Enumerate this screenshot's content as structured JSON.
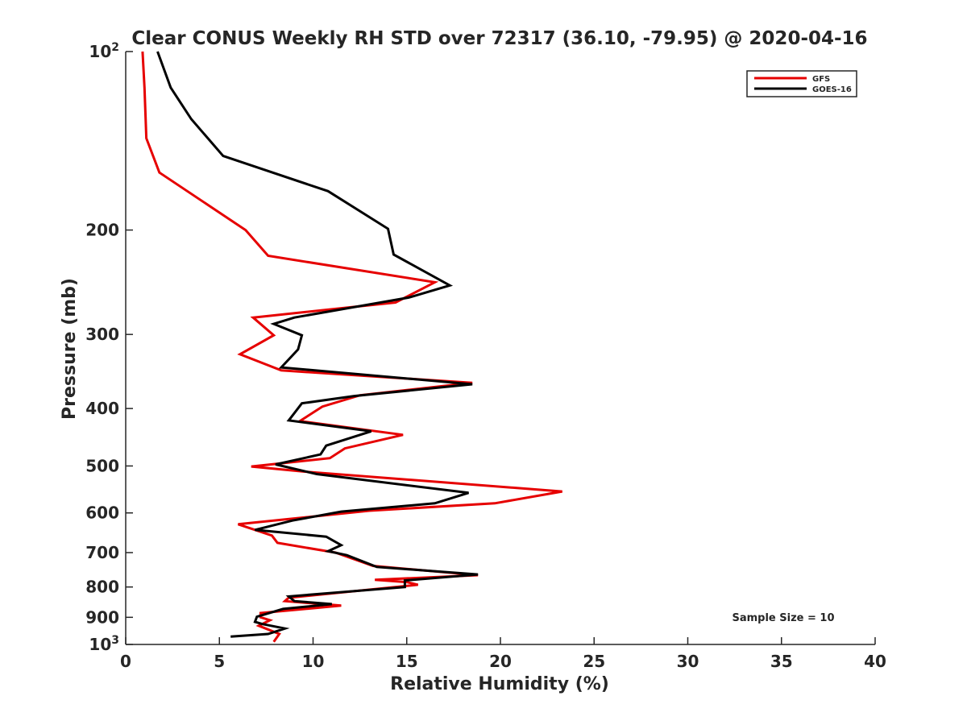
{
  "chart_data": {
    "type": "line",
    "title": "Clear CONUS Weekly RH STD over 72317 (36.10, -79.95) @ 2020-04-16",
    "xlabel": "Relative Humidity (%)",
    "ylabel": "Pressure (mb)",
    "xlim": [
      0,
      40
    ],
    "ylim": [
      100,
      1000
    ],
    "y_scale": "log",
    "y_reversed": true,
    "grid": false,
    "legend_position": "top-right",
    "x_ticks": [
      0,
      5,
      10,
      15,
      20,
      25,
      30,
      35,
      40
    ],
    "x_tick_labels": [
      "0",
      "5",
      "10",
      "15",
      "20",
      "25",
      "30",
      "35",
      "40"
    ],
    "y_ticks": [
      100,
      200,
      300,
      400,
      500,
      600,
      700,
      800,
      900,
      1000
    ],
    "y_tick_labels": [
      {
        "base": "10",
        "exp": "2"
      },
      {
        "base": "200",
        "exp": ""
      },
      {
        "base": "300",
        "exp": ""
      },
      {
        "base": "400",
        "exp": ""
      },
      {
        "base": "500",
        "exp": ""
      },
      {
        "base": "600",
        "exp": ""
      },
      {
        "base": "700",
        "exp": ""
      },
      {
        "base": "800",
        "exp": ""
      },
      {
        "base": "900",
        "exp": ""
      },
      {
        "base": "10",
        "exp": "3"
      }
    ],
    "annotation": "Sample Size = 10",
    "series": [
      {
        "name": "GFS",
        "color": "#e60000",
        "points": [
          [
            0.9,
            100
          ],
          [
            1.0,
            115
          ],
          [
            1.1,
            140
          ],
          [
            1.8,
            160
          ],
          [
            6.4,
            200
          ],
          [
            7.6,
            221
          ],
          [
            16.5,
            245
          ],
          [
            14.4,
            265
          ],
          [
            6.8,
            281
          ],
          [
            7.9,
            301
          ],
          [
            6.1,
            324
          ],
          [
            8.3,
            345
          ],
          [
            18.5,
            362
          ],
          [
            12.5,
            380
          ],
          [
            10.5,
            397
          ],
          [
            9.3,
            420
          ],
          [
            14.8,
            443
          ],
          [
            11.7,
            467
          ],
          [
            10.9,
            485
          ],
          [
            6.7,
            501
          ],
          [
            9.5,
            511
          ],
          [
            23.3,
            552
          ],
          [
            19.7,
            578
          ],
          [
            13.0,
            595
          ],
          [
            6.0,
            627
          ],
          [
            7.8,
            655
          ],
          [
            8.1,
            674
          ],
          [
            11.2,
            700
          ],
          [
            13.2,
            737
          ],
          [
            18.8,
            764
          ],
          [
            13.3,
            778
          ],
          [
            15.0,
            785
          ],
          [
            15.6,
            793
          ],
          [
            8.7,
            834
          ],
          [
            8.5,
            845
          ],
          [
            11.5,
            860
          ],
          [
            7.2,
            885
          ],
          [
            7.2,
            900
          ],
          [
            7.7,
            910
          ],
          [
            7.1,
            930
          ],
          [
            8.2,
            960
          ],
          [
            7.9,
            990
          ]
        ]
      },
      {
        "name": "GOES-16",
        "color": "#000000",
        "points": [
          [
            1.7,
            100
          ],
          [
            2.4,
            115
          ],
          [
            3.5,
            130
          ],
          [
            5.2,
            150
          ],
          [
            10.8,
            172
          ],
          [
            14.0,
            199
          ],
          [
            14.3,
            220
          ],
          [
            17.3,
            248
          ],
          [
            15.1,
            260
          ],
          [
            9.0,
            281
          ],
          [
            7.9,
            288
          ],
          [
            9.4,
            301
          ],
          [
            9.2,
            318
          ],
          [
            8.3,
            341
          ],
          [
            18.5,
            364
          ],
          [
            12.2,
            381
          ],
          [
            9.4,
            392
          ],
          [
            8.7,
            419
          ],
          [
            13.1,
            437
          ],
          [
            10.7,
            462
          ],
          [
            10.4,
            478
          ],
          [
            8.0,
            497
          ],
          [
            10.2,
            516
          ],
          [
            18.3,
            555
          ],
          [
            16.5,
            578
          ],
          [
            11.5,
            597
          ],
          [
            8.9,
            618
          ],
          [
            6.9,
            641
          ],
          [
            10.7,
            658
          ],
          [
            11.5,
            680
          ],
          [
            10.8,
            696
          ],
          [
            11.8,
            707
          ],
          [
            13.4,
            740
          ],
          [
            18.8,
            762
          ],
          [
            14.9,
            780
          ],
          [
            14.9,
            800
          ],
          [
            8.7,
            830
          ],
          [
            9.0,
            845
          ],
          [
            11.0,
            855
          ],
          [
            8.4,
            871
          ],
          [
            7.0,
            898
          ],
          [
            6.9,
            916
          ],
          [
            7.3,
            924
          ],
          [
            8.5,
            940
          ],
          [
            7.6,
            960
          ],
          [
            5.6,
            970
          ]
        ]
      }
    ]
  }
}
